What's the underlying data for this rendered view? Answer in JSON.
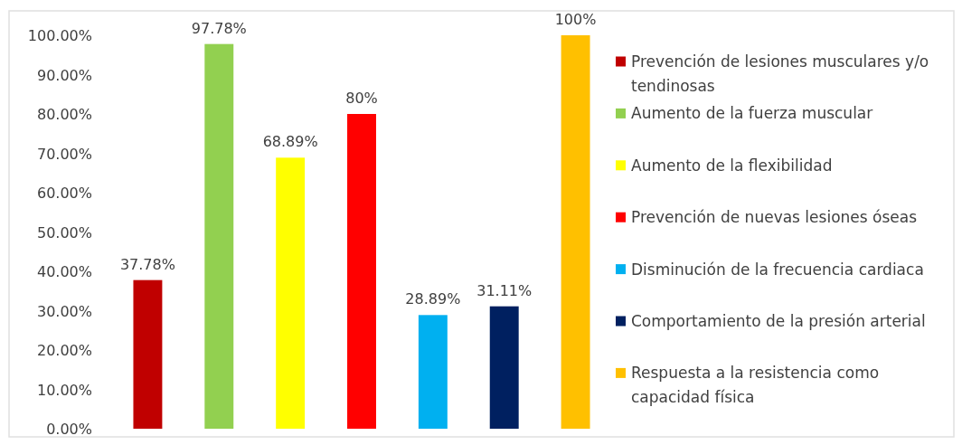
{
  "chart_data": {
    "type": "bar",
    "categories": [
      null,
      null,
      null,
      null,
      null,
      null,
      null
    ],
    "stacked": true,
    "series": [
      {
        "name": "Prevención de lesiones musculares y/o tendinosas",
        "color": "#c00000",
        "values": [
          37.78,
          null,
          null,
          null,
          null,
          null,
          null
        ],
        "value_labels": [
          "37.78%",
          null,
          null,
          null,
          null,
          null,
          null
        ]
      },
      {
        "name": "Aumento de la fuerza muscular",
        "color": "#92d050",
        "values": [
          null,
          97.78,
          null,
          null,
          null,
          null,
          null
        ],
        "value_labels": [
          null,
          "97.78%",
          null,
          null,
          null,
          null,
          null
        ]
      },
      {
        "name": "Aumento de la flexibilidad",
        "color": "#ffff00",
        "values": [
          null,
          null,
          68.89,
          null,
          null,
          null,
          null
        ],
        "value_labels": [
          null,
          null,
          "68.89%",
          null,
          null,
          null,
          null
        ]
      },
      {
        "name": "Prevención de nuevas lesiones óseas",
        "color": "#ff0000",
        "values": [
          null,
          null,
          null,
          80,
          null,
          null,
          null
        ],
        "value_labels": [
          null,
          null,
          null,
          "80%",
          null,
          null,
          null
        ]
      },
      {
        "name": "Disminución de la frecuencia cardiaca",
        "color": "#00b0f0",
        "values": [
          null,
          null,
          null,
          null,
          28.89,
          null,
          null
        ],
        "value_labels": [
          null,
          null,
          null,
          null,
          "28.89%",
          null,
          null
        ]
      },
      {
        "name": "Comportamiento de la presión arterial",
        "color": "#002060",
        "values": [
          null,
          null,
          null,
          null,
          null,
          31.11,
          null
        ],
        "value_labels": [
          null,
          null,
          null,
          null,
          null,
          "31.11%",
          null
        ]
      },
      {
        "name": "Respuesta a la resistencia como capacidad física",
        "color": "#ffc000",
        "values": [
          null,
          null,
          null,
          null,
          null,
          null,
          100
        ],
        "value_labels": [
          null,
          null,
          null,
          null,
          null,
          null,
          "100%"
        ]
      }
    ],
    "ylim": [
      0,
      100
    ],
    "yticks": [
      {
        "value": 0,
        "label": "0.00%"
      },
      {
        "value": 10,
        "label": "10.00%"
      },
      {
        "value": 20,
        "label": "20.00%"
      },
      {
        "value": 30,
        "label": "30.00%"
      },
      {
        "value": 40,
        "label": "40.00%"
      },
      {
        "value": 50,
        "label": "50.00%"
      },
      {
        "value": 60,
        "label": "60.00%"
      },
      {
        "value": 70,
        "label": "70.00%"
      },
      {
        "value": 80,
        "label": "80.00%"
      },
      {
        "value": 90,
        "label": "90.00%"
      },
      {
        "value": 100,
        "label": "100.00%"
      }
    ],
    "legend": "right",
    "tick_labels": "y"
  }
}
